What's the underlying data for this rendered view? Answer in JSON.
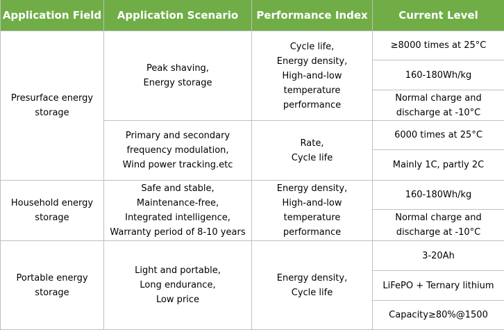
{
  "header": {
    "col1": "Application Field",
    "col2": "Application Scenario",
    "col3": "Performance Index",
    "col4": "Current Level"
  },
  "rows": {
    "presurface": {
      "field": "Presurface energy\nstorage",
      "peak": {
        "scenario": "Peak shaving,\nEnergy storage",
        "index": "Cycle life,\nEnergy density,\nHigh-and-low\ntemperature performance",
        "levels": [
          "≥8000 times at 25°C",
          "160-180Wh/kg",
          "Normal charge and\ndischarge at -10°C"
        ]
      },
      "frequency": {
        "scenario": "Primary and secondary\nfrequency modulation,\nWind power tracking.etc",
        "index": "Rate,\nCycle life",
        "levels": [
          "6000 times at 25°C",
          "Mainly 1C, partly 2C"
        ]
      }
    },
    "household": {
      "field": "Household energy\nstorage",
      "scenario": "Safe and stable,\nMaintenance-free,\nIntegrated intelligence,\nWarranty period of 8-10 years",
      "index": "Energy density,\nHigh-and-low\ntemperature performance",
      "levels": [
        "160-180Wh/kg",
        "Normal charge and\ndischarge at -10°C"
      ]
    },
    "portable": {
      "field": "Portable energy\nstorage",
      "scenario": "Light and portable,\nLong endurance,\nLow price",
      "index": "Energy density,\nCycle life",
      "levels": [
        "3-20Ah",
        "LiFePO + Ternary lithium",
        "Capacity≥80%@1500"
      ]
    }
  }
}
